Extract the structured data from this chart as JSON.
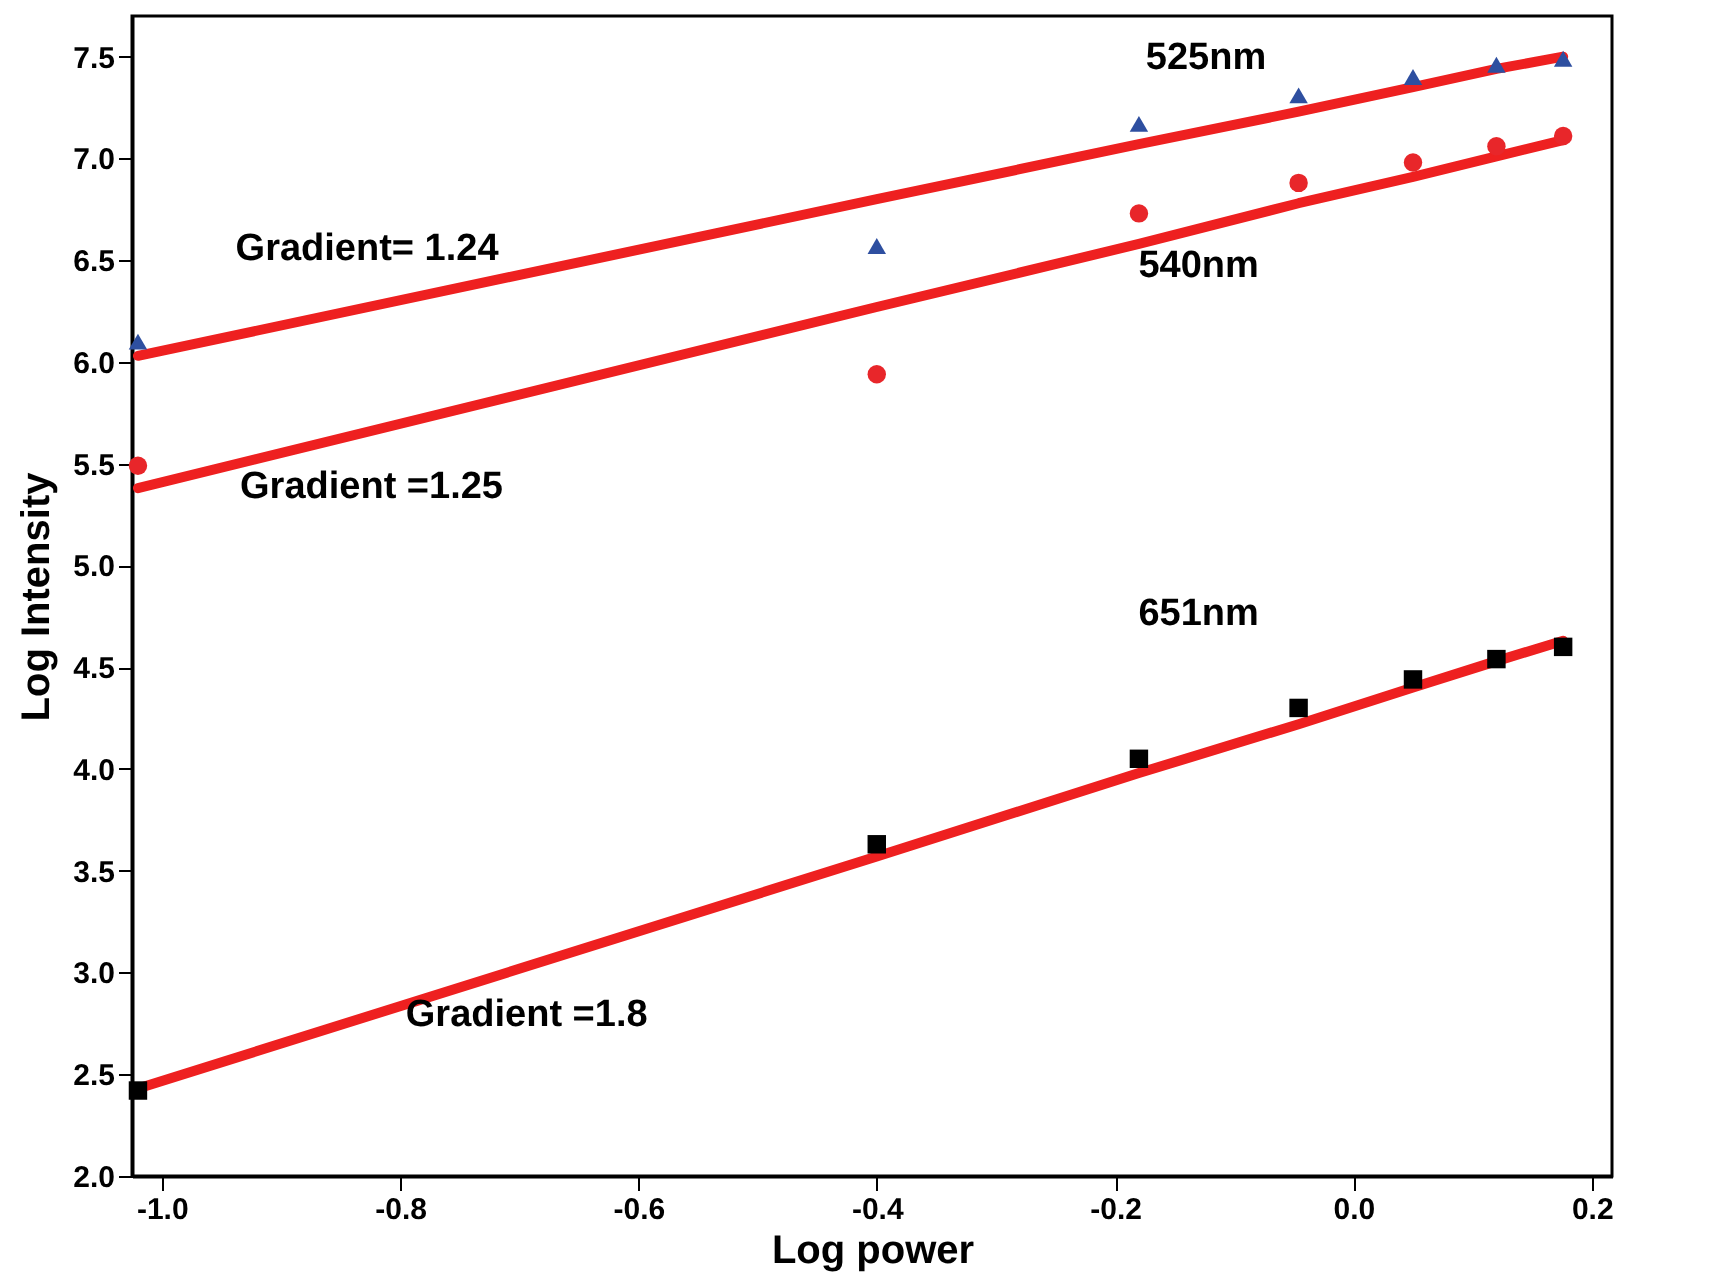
{
  "chart_data": {
    "type": "scatter",
    "xlabel": "Log power",
    "ylabel": "Log Intensity",
    "x": [
      -1.02,
      -0.4,
      -0.18,
      -0.046,
      0.05,
      0.12,
      0.176
    ],
    "series": [
      {
        "color": "#2e4fa0",
        "marker": "triangle",
        "values": [
          6.1,
          6.57,
          7.17,
          7.31,
          7.4,
          7.46,
          7.49
        ]
      },
      {
        "color": "#e8262a",
        "marker": "circle",
        "values": [
          5.49,
          5.94,
          6.73,
          6.88,
          6.98,
          7.06,
          7.11
        ]
      },
      {
        "color": "#000000",
        "marker": "square",
        "values": [
          2.42,
          3.63,
          4.05,
          4.3,
          4.44,
          4.54,
          4.6
        ]
      },
      {
        "type": "line",
        "color": "#ee2020",
        "values": [
          6.03,
          6.8,
          7.07,
          7.23,
          7.35,
          7.44,
          7.5
        ]
      },
      {
        "type": "line",
        "color": "#ee2020",
        "values": [
          5.38,
          6.27,
          6.58,
          6.78,
          6.91,
          7.01,
          7.09
        ]
      },
      {
        "type": "line",
        "color": "#ee2020",
        "values": [
          2.43,
          3.57,
          3.98,
          4.22,
          4.4,
          4.53,
          4.63
        ]
      }
    ],
    "annotations": [
      "525nm",
      "Gradient= 1.24",
      "540nm",
      "Gradient =1.25",
      "651nm",
      "Gradient =1.8"
    ],
    "xlim": [
      -1.025,
      0.217
    ],
    "ylim": [
      2.0,
      7.7
    ],
    "xticks": [
      {
        "value": -1,
        "label": "-1.0"
      },
      -0.8,
      -0.6,
      -0.4,
      -0.2,
      {
        "value": 0,
        "label": "0.0"
      },
      0.2
    ],
    "yticks": [
      {
        "value": 2,
        "label": "2.0"
      },
      2.5,
      {
        "value": 3,
        "label": "3.0"
      },
      3.5,
      {
        "value": 4,
        "label": "4.0"
      },
      4.5,
      {
        "value": 5,
        "label": "5.0"
      },
      5.5,
      {
        "value": 6,
        "label": "6.0"
      },
      6.5,
      {
        "value": 7,
        "label": "7.0"
      },
      7.5
    ],
    "grid": false
  }
}
